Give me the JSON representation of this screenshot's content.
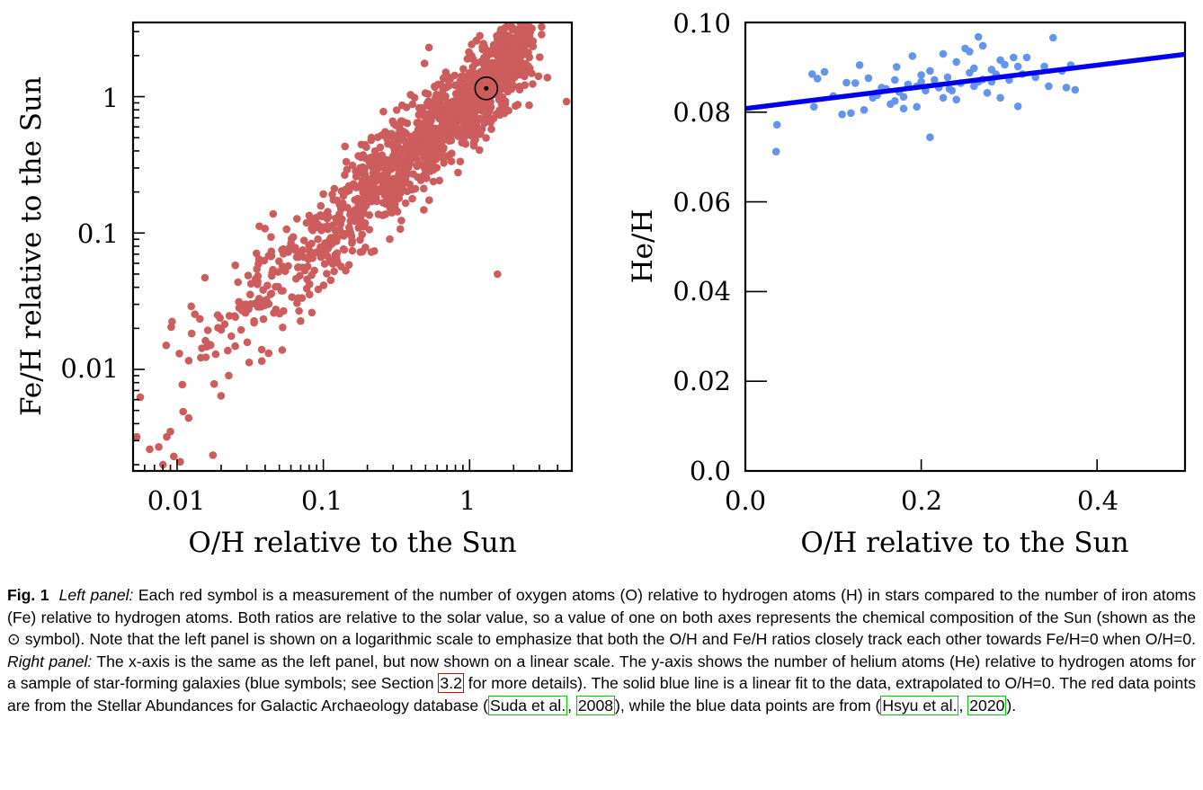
{
  "left_panel": {
    "xlabel": "O/H relative to the Sun",
    "ylabel": "Fe/H relative to the Sun",
    "x_tick_labels": [
      "0.01",
      "0.1",
      "1"
    ],
    "y_tick_labels": [
      "0.01",
      "0.1",
      "1"
    ]
  },
  "right_panel": {
    "xlabel": "O/H relative to the Sun",
    "ylabel": "He/H",
    "x_tick_labels": [
      "0.0",
      "0.2",
      "0.4"
    ],
    "y_tick_labels": [
      "0.0",
      "0.02",
      "0.04",
      "0.06",
      "0.08",
      "0.10"
    ]
  },
  "chart_data": [
    {
      "type": "scatter",
      "panel": "left",
      "x_scale": "log",
      "y_scale": "log",
      "xlim": [
        0.005,
        5
      ],
      "ylim": [
        0.0018,
        3.5
      ],
      "xlabel": "O/H relative to the Sun",
      "ylabel": "Fe/H relative to the Sun",
      "x_ticks": [
        0.01,
        0.1,
        1
      ],
      "y_ticks": [
        0.01,
        0.1,
        1
      ],
      "point_color": "#cd5c5c",
      "solar_symbol": {
        "x": 1.3,
        "y": 1.15,
        "color": "#000000"
      },
      "trend": {
        "relation": "y ≈ x",
        "spread_dex": 0.25,
        "n_points": 1400
      },
      "x": [
        0.0053,
        0.0065,
        0.0075,
        0.0085,
        0.009,
        0.0095,
        0.0105,
        0.012,
        0.011,
        0.02,
        0.025,
        0.0125,
        0.0155,
        1.55,
        4.6,
        3.4,
        2.3
      ],
      "y": [
        0.0032,
        0.0026,
        0.0027,
        0.0032,
        0.0035,
        0.0023,
        0.0021,
        0.0044,
        0.0049,
        0.0064,
        0.058,
        0.029,
        0.047,
        0.05,
        0.92,
        1.38,
        2.9
      ]
    },
    {
      "type": "scatter",
      "panel": "right",
      "xlim": [
        0.0,
        0.5
      ],
      "ylim": [
        0.0,
        0.1
      ],
      "xlabel": "O/H relative to the Sun",
      "ylabel": "He/H",
      "x_ticks": [
        0.0,
        0.2,
        0.4
      ],
      "y_ticks": [
        0.0,
        0.02,
        0.04,
        0.06,
        0.08,
        0.1
      ],
      "point_color": "#6495ed",
      "x": [
        0.035,
        0.036,
        0.076,
        0.078,
        0.082,
        0.09,
        0.1,
        0.11,
        0.115,
        0.12,
        0.125,
        0.13,
        0.135,
        0.14,
        0.145,
        0.15,
        0.155,
        0.16,
        0.165,
        0.17,
        0.172,
        0.175,
        0.18,
        0.185,
        0.19,
        0.195,
        0.2,
        0.205,
        0.21,
        0.215,
        0.22,
        0.225,
        0.23,
        0.235,
        0.24,
        0.245,
        0.25,
        0.255,
        0.26,
        0.265,
        0.27,
        0.275,
        0.28,
        0.285,
        0.29,
        0.295,
        0.3,
        0.305,
        0.31,
        0.315,
        0.32,
        0.33,
        0.34,
        0.345,
        0.35,
        0.36,
        0.365,
        0.37,
        0.375,
        0.21,
        0.232,
        0.265,
        0.255,
        0.29,
        0.18,
        0.2,
        0.24,
        0.28,
        0.31,
        0.27,
        0.225,
        0.195,
        0.15,
        0.17,
        0.26
      ],
      "y": [
        0.0712,
        0.0772,
        0.0885,
        0.0812,
        0.0875,
        0.089,
        0.0836,
        0.0795,
        0.0866,
        0.0798,
        0.0865,
        0.0905,
        0.0805,
        0.0876,
        0.0832,
        0.0843,
        0.0855,
        0.0852,
        0.0818,
        0.0872,
        0.0901,
        0.0845,
        0.0808,
        0.0862,
        0.0925,
        0.0858,
        0.0883,
        0.0848,
        0.0744,
        0.0872,
        0.0855,
        0.093,
        0.0878,
        0.0848,
        0.0912,
        0.0865,
        0.0942,
        0.0888,
        0.0858,
        0.0968,
        0.0873,
        0.0843,
        0.0895,
        0.0885,
        0.0832,
        0.0906,
        0.0872,
        0.0922,
        0.0813,
        0.0885,
        0.0922,
        0.0878,
        0.0902,
        0.0858,
        0.0966,
        0.0892,
        0.0855,
        0.0905,
        0.085,
        0.0892,
        0.0852,
        0.0868,
        0.0935,
        0.0916,
        0.0834,
        0.0868,
        0.0828,
        0.0868,
        0.0902,
        0.0948,
        0.0832,
        0.0812,
        0.0838,
        0.0825,
        0.0898
      ],
      "fit": {
        "color": "#0000ee",
        "intercept": 0.0808,
        "slope": 0.0242,
        "x_range": [
          0.0,
          0.5
        ]
      }
    }
  ],
  "caption": {
    "fig_label": "Fig. 1",
    "left_panel_label": "Left panel:",
    "text_1": " Each red symbol is a measurement of the number of oxygen atoms (O) relative to hydrogen atoms (H) in stars compared to the number of iron atoms (Fe) relative to hydrogen atoms. Both ratios are relative to the solar value, so a value of one on both axes represents the chemical composition of the Sun (shown as the ",
    "sun_symbol": "⊙",
    "text_2": " symbol). Note that the left panel is shown on a logarithmic scale to emphasize that both the O/H and Fe/H ratios closely track each other towards Fe/H=0 when O/H=0. ",
    "right_panel_label": "Right panel:",
    "text_3": " The x-axis is the same as the left panel, but now shown on a linear scale. The y-axis shows the number of helium atoms (He) relative to hydrogen atoms for a sample of star-forming galaxies (blue symbols; see Section ",
    "section_ref": "3.2",
    "text_4": " for more details). The solid blue line is a linear fit to the data, extrapolated to O/H=0. The red data points are from the Stellar Abundances for Galactic Archaeology database (",
    "ref1_author": "Suda et al.",
    "ref1_sep": ", ",
    "ref1_year": "2008",
    "text_5": "), while the blue data points are from (",
    "ref2_author": "Hsyu et al.",
    "ref2_sep": ", ",
    "ref2_year": "2020",
    "text_6": ")."
  }
}
